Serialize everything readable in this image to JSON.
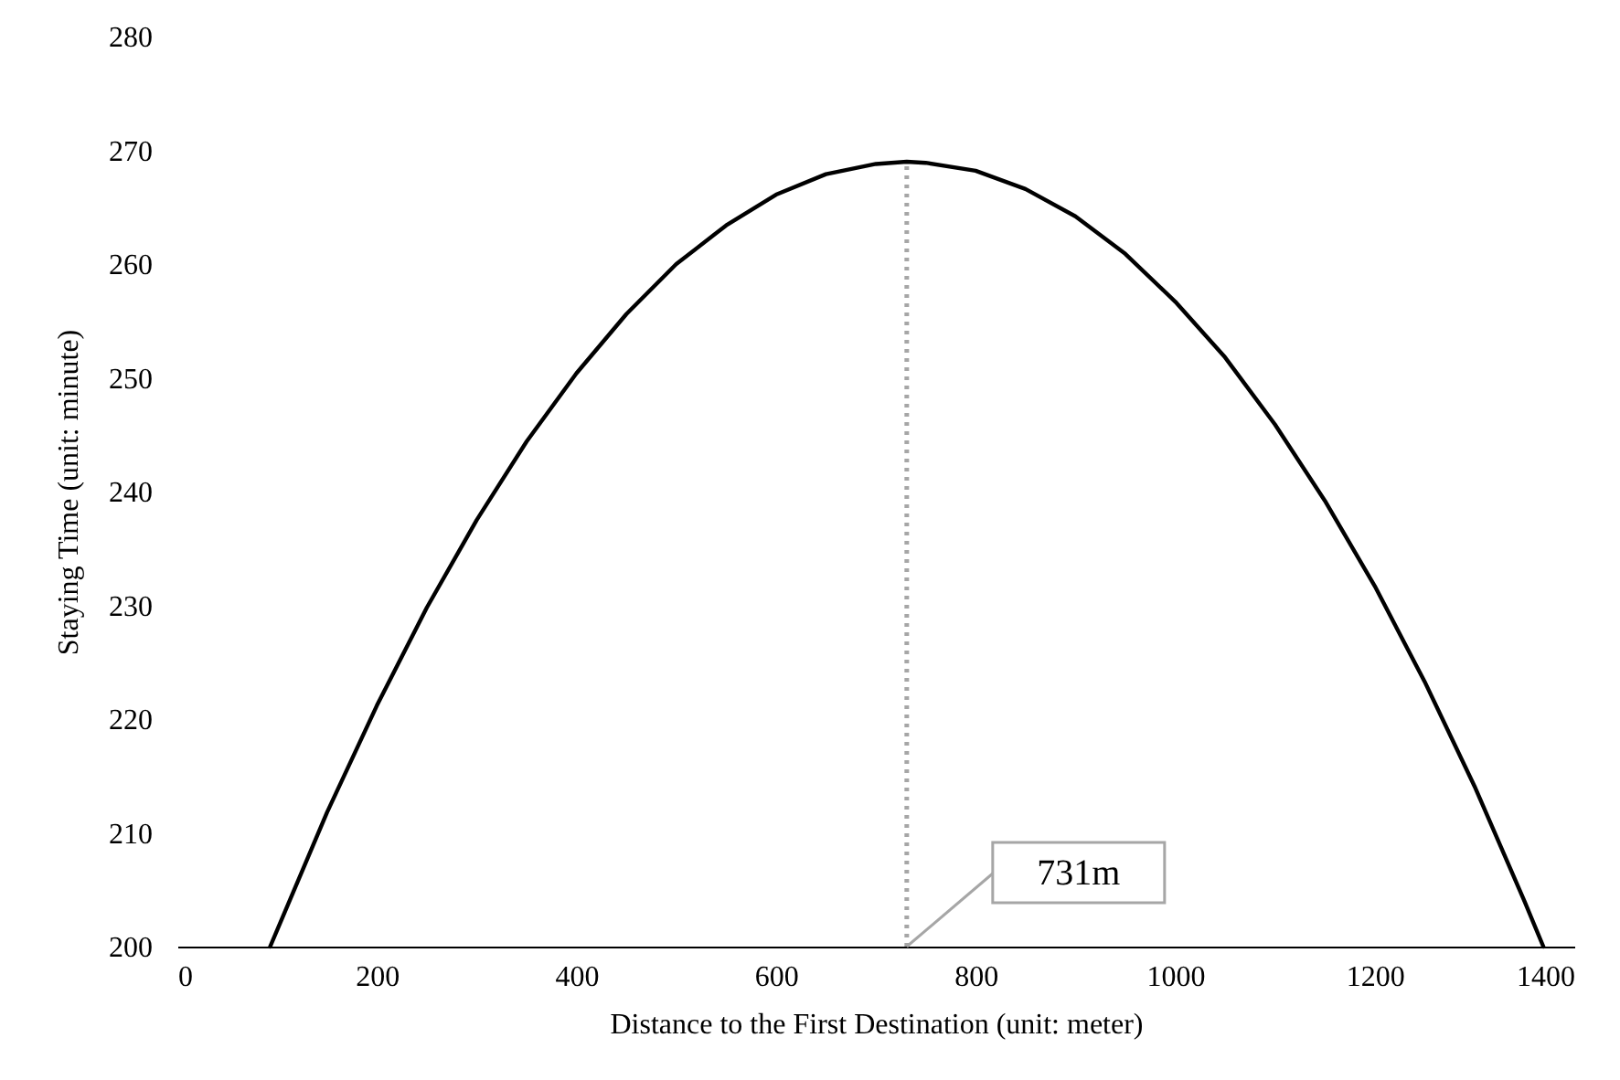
{
  "chart_data": {
    "type": "line",
    "xlabel": "Distance to the First Destination (unit: meter)",
    "ylabel": "Staying Time (unit: minute)",
    "x": [
      93,
      150,
      200,
      250,
      300,
      350,
      400,
      450,
      500,
      550,
      600,
      650,
      700,
      731,
      750,
      800,
      850,
      900,
      950,
      1000,
      1050,
      1100,
      1150,
      1200,
      1250,
      1300,
      1350,
      1369
    ],
    "series": [
      {
        "color": "#000000",
        "values": [
          200,
          211.8,
          221.2,
          229.8,
          237.5,
          244.4,
          250.4,
          255.6,
          260.0,
          263.4,
          266.1,
          267.9,
          268.8,
          269,
          268.9,
          268.2,
          266.6,
          264.2,
          260.9,
          256.7,
          251.8,
          245.9,
          239.2,
          231.7,
          223.3,
          214.1,
          204.0,
          200
        ]
      }
    ],
    "xlim": [
      0,
      1400
    ],
    "xticks": [
      0,
      200,
      400,
      600,
      800,
      1000,
      1200,
      1400
    ],
    "ylim": [
      200,
      280
    ],
    "yticks": [
      200,
      210,
      220,
      230,
      240,
      250,
      260,
      270,
      280
    ],
    "marker": "none",
    "line_style": "solid",
    "ref_lines": [
      {
        "axis": "x",
        "value": 731,
        "label": "731m",
        "color": "#a6a6a6",
        "line_style": "dotted"
      }
    ]
  }
}
